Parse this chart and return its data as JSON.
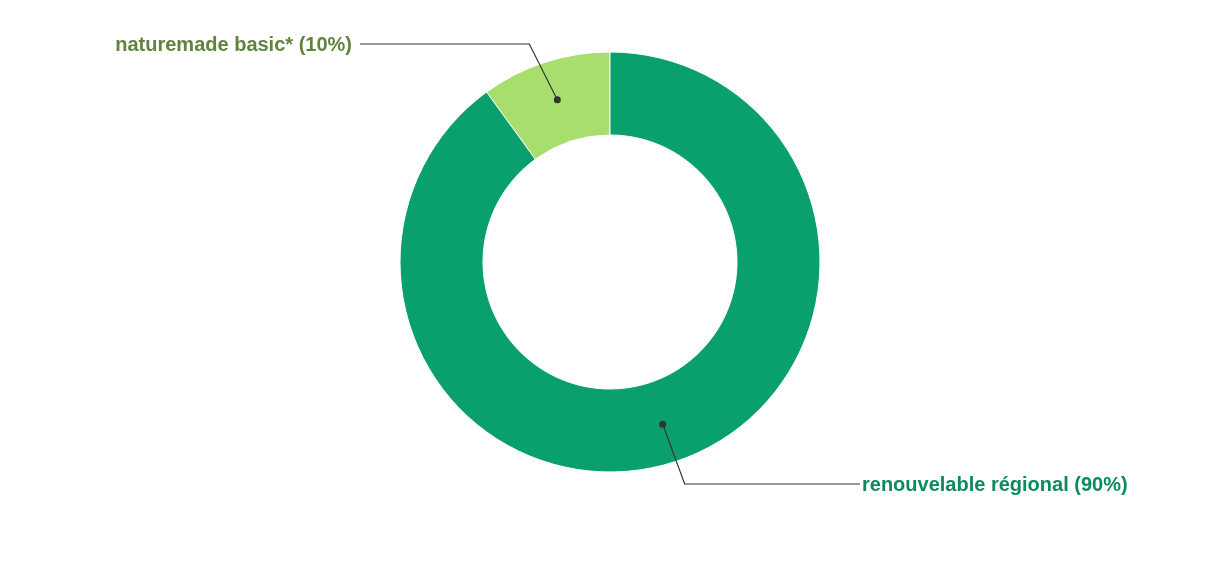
{
  "chart_data": {
    "type": "donut",
    "categories": [
      "naturemade basic*",
      "renouvelable régional"
    ],
    "values": [
      10,
      90
    ],
    "colors": [
      "#a8de6e",
      "#0aa06e"
    ],
    "value_labels": [
      "(10%)",
      "(90%)"
    ]
  }
}
